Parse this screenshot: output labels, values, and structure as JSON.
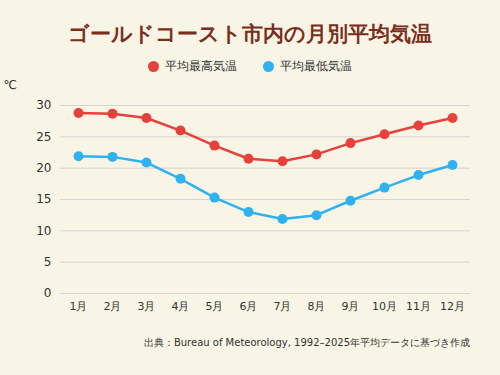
{
  "chart_data": {
    "type": "line",
    "title": "ゴールドコースト市内の月別平均気温",
    "y_label": "℃",
    "categories": [
      "1月",
      "2月",
      "3月",
      "4月",
      "5月",
      "6月",
      "7月",
      "8月",
      "9月",
      "10月",
      "11月",
      "12月"
    ],
    "series": [
      {
        "name": "平均最高気温",
        "color": "#e8403a",
        "marker": "circle",
        "values": [
          28.8,
          28.7,
          28.0,
          26.0,
          23.6,
          21.5,
          21.1,
          22.2,
          24.0,
          25.4,
          26.8,
          28.0
        ]
      },
      {
        "name": "平均最低気温",
        "color": "#2fb2f0",
        "marker": "circle",
        "values": [
          21.9,
          21.8,
          20.9,
          18.3,
          15.3,
          13.0,
          11.9,
          12.5,
          14.8,
          16.9,
          18.9,
          20.5
        ]
      }
    ],
    "ylim": [
      0,
      30
    ],
    "yticks": [
      0,
      5,
      10,
      15,
      20,
      25,
      30
    ],
    "grid": true,
    "legend": "top",
    "source": "出典：Bureau of Meteorology, 1992–2025年平均データに基づき作成"
  }
}
